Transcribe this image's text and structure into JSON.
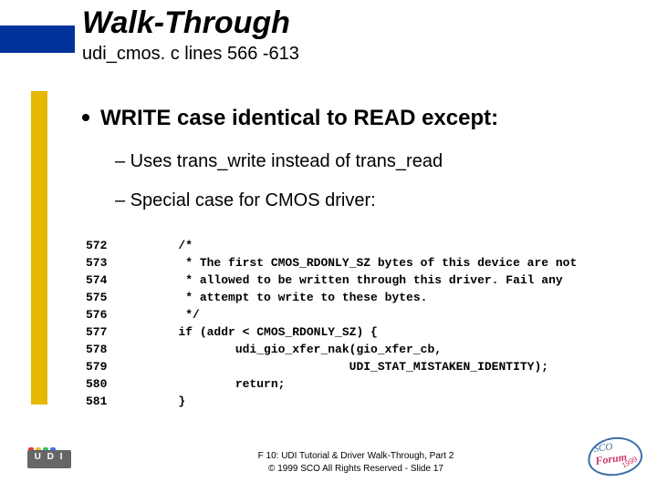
{
  "title": "Walk-Through",
  "subtitle": "udi_cmos. c lines 566 -613",
  "bullets": {
    "l1": "WRITE case identical to READ except:",
    "l2a": "– Uses trans_write instead of trans_read",
    "l2b": "– Special case for CMOS driver:"
  },
  "code": {
    "line_numbers": [
      "572",
      "573",
      "574",
      "575",
      "576",
      "577",
      "578",
      "579",
      "580",
      "581"
    ],
    "text_lines": [
      "/*",
      " * The first CMOS_RDONLY_SZ bytes of this device are not",
      " * allowed to be written through this driver. Fail any",
      " * attempt to write to these bytes.",
      " */",
      "if (addr < CMOS_RDONLY_SZ) {",
      "        udi_gio_xfer_nak(gio_xfer_cb,",
      "                        UDI_STAT_MISTAKEN_IDENTITY);",
      "        return;",
      "}"
    ]
  },
  "footer": {
    "line1": "F 10: UDI Tutorial & Driver Walk-Through, Part 2",
    "line2": "© 1999 SCO All Rights Reserved - Slide 17"
  },
  "logos": {
    "udi_text": "U D I",
    "sco": "SCO",
    "forum": "Forum",
    "year": "1999"
  },
  "colors": {
    "title_bar": "#003399",
    "accent_bar": "#e6b800",
    "sco_border": "#3b6ea5",
    "forum_color": "#cc3366",
    "udi_dot1": "#e63b3b",
    "udi_dot2": "#e6c23b",
    "udi_dot3": "#3bc26a",
    "udi_dot4": "#3b7be6"
  }
}
